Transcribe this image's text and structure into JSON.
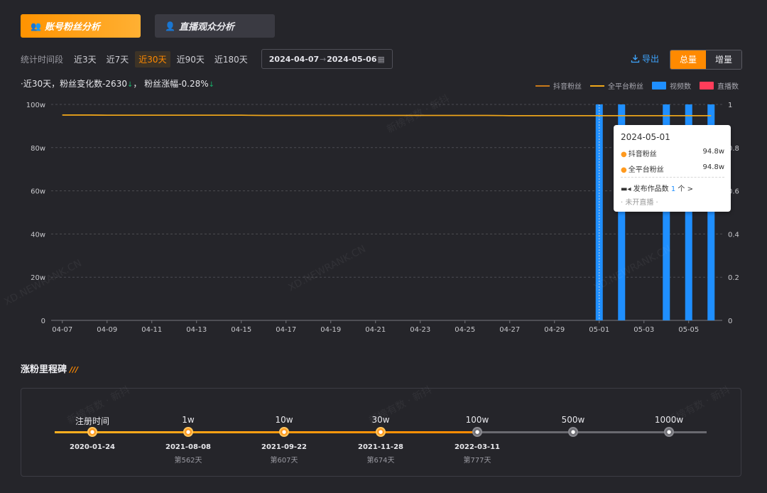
{
  "tabs": [
    {
      "label": "账号粉丝分析",
      "icon": "fans-icon",
      "active": true
    },
    {
      "label": "直播观众分析",
      "icon": "live-audience-icon",
      "active": false
    }
  ],
  "filter": {
    "label": "统计时间段",
    "options": [
      "近3天",
      "近7天",
      "近30天",
      "近90天",
      "近180天"
    ],
    "selected": "近30天",
    "date_start": "2024-04-07",
    "date_end": "2024-05-06"
  },
  "export_label": "导出",
  "toggle": {
    "total": "总量",
    "increment": "增量",
    "selected": "总量"
  },
  "summary": {
    "prefix": "·近30天，粉丝变化数",
    "change": "-2630",
    "mid": "，  粉丝涨幅",
    "rate": "-0.28%"
  },
  "legend": [
    {
      "label": "抖音粉丝",
      "color": "#c8791a",
      "kind": "line"
    },
    {
      "label": "全平台粉丝",
      "color": "#f0a81a",
      "kind": "line"
    },
    {
      "label": "视频数",
      "color": "#1f8fff",
      "kind": "bar"
    },
    {
      "label": "直播数",
      "color": "#ff3d5a",
      "kind": "bar"
    }
  ],
  "chart_data": {
    "type": "line",
    "x": [
      "04-07",
      "04-08",
      "04-09",
      "04-10",
      "04-11",
      "04-12",
      "04-13",
      "04-14",
      "04-15",
      "04-16",
      "04-17",
      "04-18",
      "04-19",
      "04-20",
      "04-21",
      "04-22",
      "04-23",
      "04-24",
      "04-25",
      "04-26",
      "04-27",
      "04-28",
      "04-29",
      "04-30",
      "05-01",
      "05-02",
      "05-03",
      "05-04",
      "05-05",
      "05-06"
    ],
    "x_tick_labels": [
      "04-07",
      "04-09",
      "04-11",
      "04-13",
      "04-15",
      "04-17",
      "04-19",
      "04-21",
      "04-23",
      "04-25",
      "04-27",
      "04-29",
      "05-01",
      "05-03",
      "05-05"
    ],
    "y_left_ticks": [
      "0",
      "20w",
      "40w",
      "60w",
      "80w",
      "100w"
    ],
    "y_left_range": [
      0,
      100
    ],
    "y_right_ticks": [
      "0",
      "0.2",
      "0.4",
      "0.6",
      "0.8",
      "1"
    ],
    "y_right_range": [
      0,
      1
    ],
    "series": [
      {
        "name": "抖音粉丝",
        "axis": "left",
        "kind": "line",
        "color": "#c8791a",
        "values": [
          95.1,
          95.1,
          95.0,
          95.0,
          95.0,
          95.0,
          95.0,
          95.0,
          95.0,
          94.9,
          94.9,
          94.9,
          94.9,
          94.9,
          94.9,
          94.9,
          94.9,
          94.9,
          94.9,
          94.9,
          94.8,
          94.8,
          94.8,
          94.8,
          94.8,
          94.8,
          94.8,
          94.8,
          94.8,
          94.8
        ]
      },
      {
        "name": "全平台粉丝",
        "axis": "left",
        "kind": "line",
        "color": "#f0a81a",
        "values": [
          95.1,
          95.1,
          95.0,
          95.0,
          95.0,
          95.0,
          95.0,
          95.0,
          95.0,
          94.9,
          94.9,
          94.9,
          94.9,
          94.9,
          94.9,
          94.9,
          94.9,
          94.9,
          94.9,
          94.9,
          94.8,
          94.8,
          94.8,
          94.8,
          94.8,
          94.8,
          94.8,
          94.8,
          94.8,
          94.8
        ]
      },
      {
        "name": "视频数",
        "axis": "right",
        "kind": "bar",
        "color": "#1f8fff",
        "values": [
          0,
          0,
          0,
          0,
          0,
          0,
          0,
          0,
          0,
          0,
          0,
          0,
          0,
          0,
          0,
          0,
          0,
          0,
          0,
          0,
          0,
          0,
          0,
          0,
          1,
          1,
          0,
          1,
          1,
          1
        ]
      },
      {
        "name": "直播数",
        "axis": "right",
        "kind": "bar",
        "color": "#ff3d5a",
        "values": [
          0,
          0,
          0,
          0,
          0,
          0,
          0,
          0,
          0,
          0,
          0,
          0,
          0,
          0,
          0,
          0,
          0,
          0,
          0,
          0,
          0,
          0,
          0,
          0,
          0,
          0,
          0,
          0,
          0,
          0
        ]
      }
    ],
    "hover_index": 24,
    "grid": true
  },
  "tooltip": {
    "date": "2024-05-01",
    "douyin_label": "抖音粉丝",
    "douyin_value": "94.8w",
    "all_label": "全平台粉丝",
    "all_value": "94.8w",
    "works_prefix": "发布作品数",
    "works_count": "1",
    "works_unit": "个 >",
    "live": "· 未开直播 ·"
  },
  "watermarks": [
    "新榜有数 · 新抖",
    "XD.NEWRANK.CN"
  ],
  "milestones": {
    "title": "涨粉里程碑",
    "items": [
      {
        "label": "注册时间",
        "date": "2020-01-24",
        "days": "",
        "reached": true
      },
      {
        "label": "1w",
        "date": "2021-08-08",
        "days": "第562天",
        "reached": true
      },
      {
        "label": "10w",
        "date": "2021-09-22",
        "days": "第607天",
        "reached": true
      },
      {
        "label": "30w",
        "date": "2021-11-28",
        "days": "第674天",
        "reached": true
      },
      {
        "label": "100w",
        "date": "2022-03-11",
        "days": "第777天",
        "reached": false
      },
      {
        "label": "500w",
        "date": "",
        "days": "",
        "reached": false
      },
      {
        "label": "1000w",
        "date": "",
        "days": "",
        "reached": false
      }
    ]
  }
}
